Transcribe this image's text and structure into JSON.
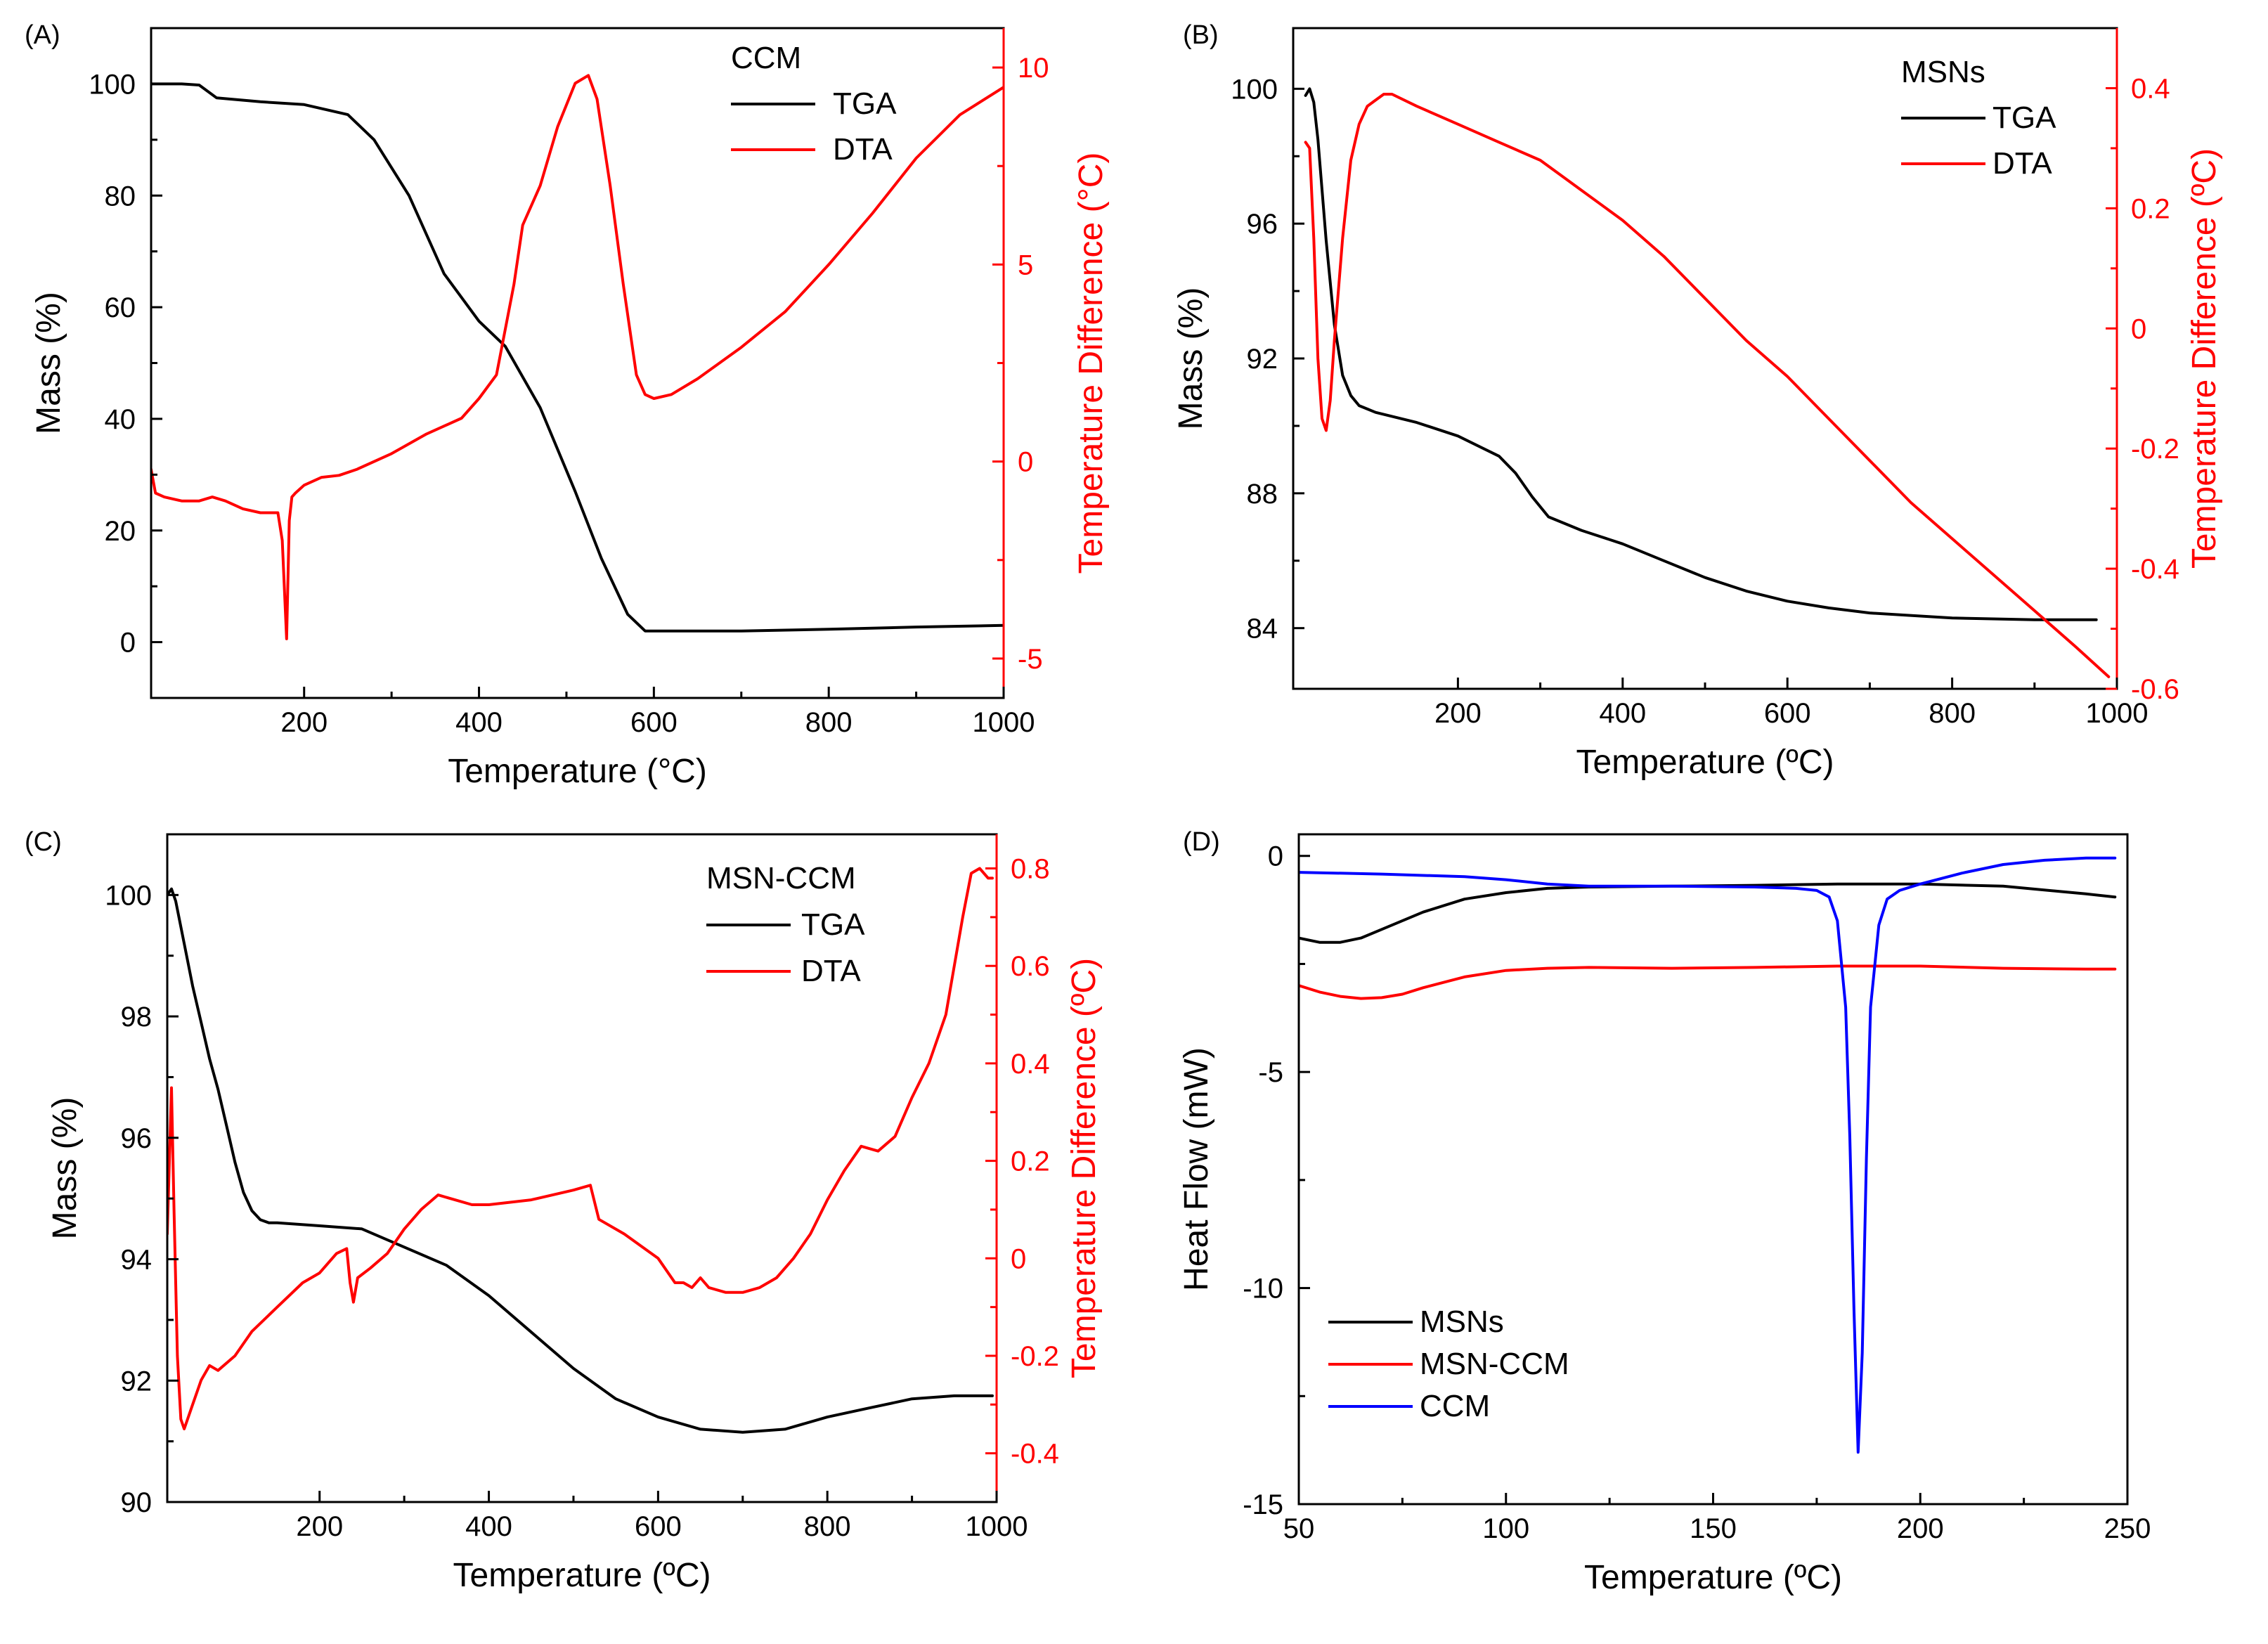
{
  "figure": {
    "background": "#ffffff",
    "axis_color": "#000000",
    "secondary_axis_color": "#ff0000"
  },
  "chart_data": [
    {
      "panel_label": "(A)",
      "type": "line",
      "title": "",
      "xlabel": "Temperature (°C)",
      "ylabel": "Mass (%)",
      "y2label": "Temperature Difference (°C)",
      "xlim": [
        25,
        1000
      ],
      "ylim": [
        -10,
        110
      ],
      "y2lim": [
        -6,
        11
      ],
      "xticks": [
        200,
        400,
        600,
        800,
        1000
      ],
      "yticks": [
        0,
        20,
        40,
        60,
        80,
        100
      ],
      "y2ticks": [
        -5,
        0,
        5,
        10
      ],
      "legend": {
        "title": "CCM",
        "placement": "top-right",
        "entries": [
          "TGA",
          "DTA"
        ]
      },
      "series": [
        {
          "name": "TGA",
          "axis": "left",
          "color": "#000000",
          "x": [
            25,
            60,
            80,
            100,
            150,
            200,
            250,
            280,
            320,
            360,
            400,
            430,
            470,
            510,
            540,
            570,
            590,
            600,
            650,
            700,
            800,
            900,
            1000
          ],
          "y": [
            100,
            100,
            99.8,
            97.5,
            96.8,
            96.3,
            94.5,
            90,
            80,
            66,
            57.5,
            53,
            42,
            27,
            15,
            5,
            2,
            2,
            2,
            2,
            2.3,
            2.7,
            3
          ]
        },
        {
          "name": "DTA",
          "axis": "right",
          "color": "#ff0000",
          "x": [
            25,
            30,
            40,
            60,
            80,
            95,
            110,
            130,
            150,
            170,
            175,
            180,
            183,
            186,
            190,
            200,
            220,
            240,
            260,
            300,
            340,
            380,
            400,
            420,
            440,
            450,
            470,
            490,
            510,
            525,
            535,
            550,
            565,
            580,
            590,
            600,
            620,
            650,
            700,
            750,
            800,
            850,
            900,
            950,
            1000
          ],
          "y": [
            -0.2,
            -0.8,
            -0.9,
            -1.0,
            -1.0,
            -0.9,
            -1.0,
            -1.2,
            -1.3,
            -1.3,
            -2.0,
            -4.5,
            -1.5,
            -0.9,
            -0.8,
            -0.6,
            -0.4,
            -0.35,
            -0.2,
            0.2,
            0.7,
            1.1,
            1.6,
            2.2,
            4.5,
            6.0,
            7.0,
            8.5,
            9.6,
            9.8,
            9.2,
            7.0,
            4.5,
            2.2,
            1.7,
            1.6,
            1.7,
            2.1,
            2.9,
            3.8,
            5.0,
            6.3,
            7.7,
            8.8,
            9.5
          ]
        }
      ]
    },
    {
      "panel_label": "(B)",
      "type": "line",
      "title": "",
      "xlabel": "Temperature (ºC)",
      "ylabel": "Mass (%)",
      "y2label": "Temperature Difference (ºC)",
      "xlim": [
        0,
        1000
      ],
      "ylim": [
        82.2,
        101.8
      ],
      "y2lim": [
        -0.6,
        0.5
      ],
      "xticks": [
        200,
        400,
        600,
        800,
        1000
      ],
      "yticks": [
        84,
        88,
        92,
        96,
        100
      ],
      "y2ticks": [
        -0.6,
        -0.4,
        -0.2,
        0.0,
        0.2,
        0.4
      ],
      "legend": {
        "title": "MSNs",
        "placement": "top-right",
        "entries": [
          "TGA",
          "DTA"
        ]
      },
      "series": [
        {
          "name": "TGA",
          "axis": "left",
          "color": "#000000",
          "x": [
            15,
            20,
            25,
            30,
            40,
            50,
            60,
            70,
            80,
            90,
            100,
            150,
            200,
            250,
            270,
            290,
            310,
            330,
            350,
            400,
            450,
            500,
            550,
            600,
            650,
            700,
            800,
            900,
            975
          ],
          "y": [
            99.8,
            100,
            99.6,
            98.5,
            95.5,
            93.0,
            91.5,
            90.9,
            90.6,
            90.5,
            90.4,
            90.1,
            89.7,
            89.1,
            88.6,
            87.9,
            87.3,
            87.1,
            86.9,
            86.5,
            86.0,
            85.5,
            85.1,
            84.8,
            84.6,
            84.45,
            84.3,
            84.25,
            84.25
          ]
        },
        {
          "name": "DTA",
          "axis": "right",
          "color": "#ff0000",
          "x": [
            15,
            20,
            25,
            30,
            35,
            40,
            45,
            50,
            60,
            70,
            80,
            90,
            100,
            110,
            120,
            150,
            200,
            250,
            300,
            350,
            400,
            450,
            500,
            550,
            600,
            650,
            700,
            750,
            800,
            850,
            900,
            950,
            990
          ],
          "y": [
            0.31,
            0.3,
            0.15,
            -0.05,
            -0.15,
            -0.17,
            -0.12,
            -0.02,
            0.15,
            0.28,
            0.34,
            0.37,
            0.38,
            0.39,
            0.39,
            0.37,
            0.34,
            0.31,
            0.28,
            0.23,
            0.18,
            0.12,
            0.05,
            -0.02,
            -0.08,
            -0.15,
            -0.22,
            -0.29,
            -0.35,
            -0.41,
            -0.47,
            -0.53,
            -0.58
          ]
        }
      ]
    },
    {
      "panel_label": "(C)",
      "type": "line",
      "title": "",
      "xlabel": "Temperature (ºC)",
      "ylabel": "Mass (%)",
      "y2label": "Temperature Difference (ºC)",
      "xlim": [
        20,
        1000
      ],
      "ylim": [
        90,
        101
      ],
      "y2lim": [
        -0.5,
        0.87
      ],
      "xticks": [
        200,
        400,
        600,
        800,
        1000
      ],
      "yticks": [
        90,
        92,
        94,
        96,
        98,
        100
      ],
      "y2ticks": [
        -0.4,
        -0.2,
        0.0,
        0.2,
        0.4,
        0.6,
        0.8
      ],
      "legend": {
        "title": "MSN-CCM",
        "placement": "top-right",
        "entries": [
          "TGA",
          "DTA"
        ]
      },
      "series": [
        {
          "name": "TGA",
          "axis": "left",
          "color": "#000000",
          "x": [
            20,
            25,
            30,
            40,
            50,
            60,
            70,
            80,
            90,
            100,
            110,
            120,
            130,
            140,
            150,
            200,
            250,
            300,
            350,
            400,
            450,
            500,
            550,
            600,
            650,
            700,
            750,
            800,
            850,
            900,
            950,
            995
          ],
          "y": [
            100,
            100.1,
            99.9,
            99.2,
            98.5,
            97.9,
            97.3,
            96.8,
            96.2,
            95.6,
            95.1,
            94.8,
            94.65,
            94.6,
            94.6,
            94.55,
            94.5,
            94.2,
            93.9,
            93.4,
            92.8,
            92.2,
            91.7,
            91.4,
            91.2,
            91.15,
            91.2,
            91.4,
            91.55,
            91.7,
            91.75,
            91.75
          ]
        },
        {
          "name": "DTA",
          "axis": "right",
          "color": "#ff0000",
          "x": [
            20,
            25,
            28,
            32,
            36,
            40,
            50,
            60,
            70,
            80,
            100,
            120,
            150,
            180,
            200,
            220,
            232,
            236,
            240,
            245,
            260,
            280,
            300,
            320,
            340,
            360,
            380,
            400,
            450,
            500,
            520,
            530,
            560,
            600,
            620,
            630,
            640,
            650,
            660,
            680,
            700,
            720,
            740,
            760,
            780,
            800,
            820,
            840,
            860,
            880,
            900,
            920,
            940,
            950,
            960,
            970,
            980,
            990,
            995
          ],
          "y": [
            0.05,
            0.35,
            0.1,
            -0.2,
            -0.33,
            -0.35,
            -0.3,
            -0.25,
            -0.22,
            -0.23,
            -0.2,
            -0.15,
            -0.1,
            -0.05,
            -0.03,
            0.01,
            0.02,
            -0.05,
            -0.09,
            -0.04,
            -0.02,
            0.01,
            0.06,
            0.1,
            0.13,
            0.12,
            0.11,
            0.11,
            0.12,
            0.14,
            0.15,
            0.08,
            0.05,
            0.0,
            -0.05,
            -0.05,
            -0.06,
            -0.04,
            -0.06,
            -0.07,
            -0.07,
            -0.06,
            -0.04,
            0.0,
            0.05,
            0.12,
            0.18,
            0.23,
            0.22,
            0.25,
            0.33,
            0.4,
            0.5,
            0.6,
            0.7,
            0.79,
            0.8,
            0.78,
            0.78
          ]
        }
      ]
    },
    {
      "panel_label": "(D)",
      "type": "line",
      "title": "",
      "xlabel": "Temperature (ºC)",
      "ylabel": "Heat Flow (mW)",
      "xlim": [
        50,
        250
      ],
      "ylim": [
        -15,
        0.5
      ],
      "xticks": [
        50,
        100,
        150,
        200,
        250
      ],
      "yticks": [
        -15,
        -10,
        -5,
        0
      ],
      "legend": {
        "title": "",
        "placement": "bottom-left",
        "entries": [
          "MSNs",
          "MSN-CCM",
          "CCM"
        ]
      },
      "series": [
        {
          "name": "MSNs",
          "axis": "left",
          "color": "#000000",
          "x": [
            50,
            55,
            60,
            65,
            70,
            80,
            90,
            100,
            110,
            120,
            140,
            160,
            180,
            200,
            220,
            240,
            247
          ],
          "y": [
            -1.9,
            -2.0,
            -2.0,
            -1.9,
            -1.7,
            -1.3,
            -1.0,
            -0.85,
            -0.75,
            -0.72,
            -0.7,
            -0.68,
            -0.65,
            -0.65,
            -0.7,
            -0.88,
            -0.95
          ]
        },
        {
          "name": "MSN-CCM",
          "axis": "left",
          "color": "#ff0000",
          "x": [
            50,
            55,
            60,
            65,
            70,
            75,
            80,
            90,
            100,
            110,
            120,
            140,
            160,
            180,
            200,
            220,
            240,
            247
          ],
          "y": [
            -3.0,
            -3.15,
            -3.25,
            -3.3,
            -3.28,
            -3.2,
            -3.05,
            -2.8,
            -2.65,
            -2.6,
            -2.58,
            -2.6,
            -2.58,
            -2.55,
            -2.55,
            -2.6,
            -2.62,
            -2.62
          ]
        },
        {
          "name": "CCM",
          "axis": "left",
          "color": "#0000ff",
          "x": [
            50,
            70,
            90,
            100,
            110,
            120,
            140,
            160,
            170,
            175,
            178,
            180,
            182,
            183,
            184,
            185,
            186,
            187,
            188,
            190,
            192,
            195,
            200,
            210,
            220,
            230,
            240,
            247
          ],
          "y": [
            -0.38,
            -0.42,
            -0.48,
            -0.55,
            -0.65,
            -0.7,
            -0.7,
            -0.72,
            -0.75,
            -0.8,
            -0.95,
            -1.5,
            -3.5,
            -6.5,
            -10.5,
            -13.8,
            -11.5,
            -7.0,
            -3.5,
            -1.6,
            -1.0,
            -0.8,
            -0.65,
            -0.4,
            -0.2,
            -0.1,
            -0.05,
            -0.05
          ]
        }
      ]
    }
  ]
}
